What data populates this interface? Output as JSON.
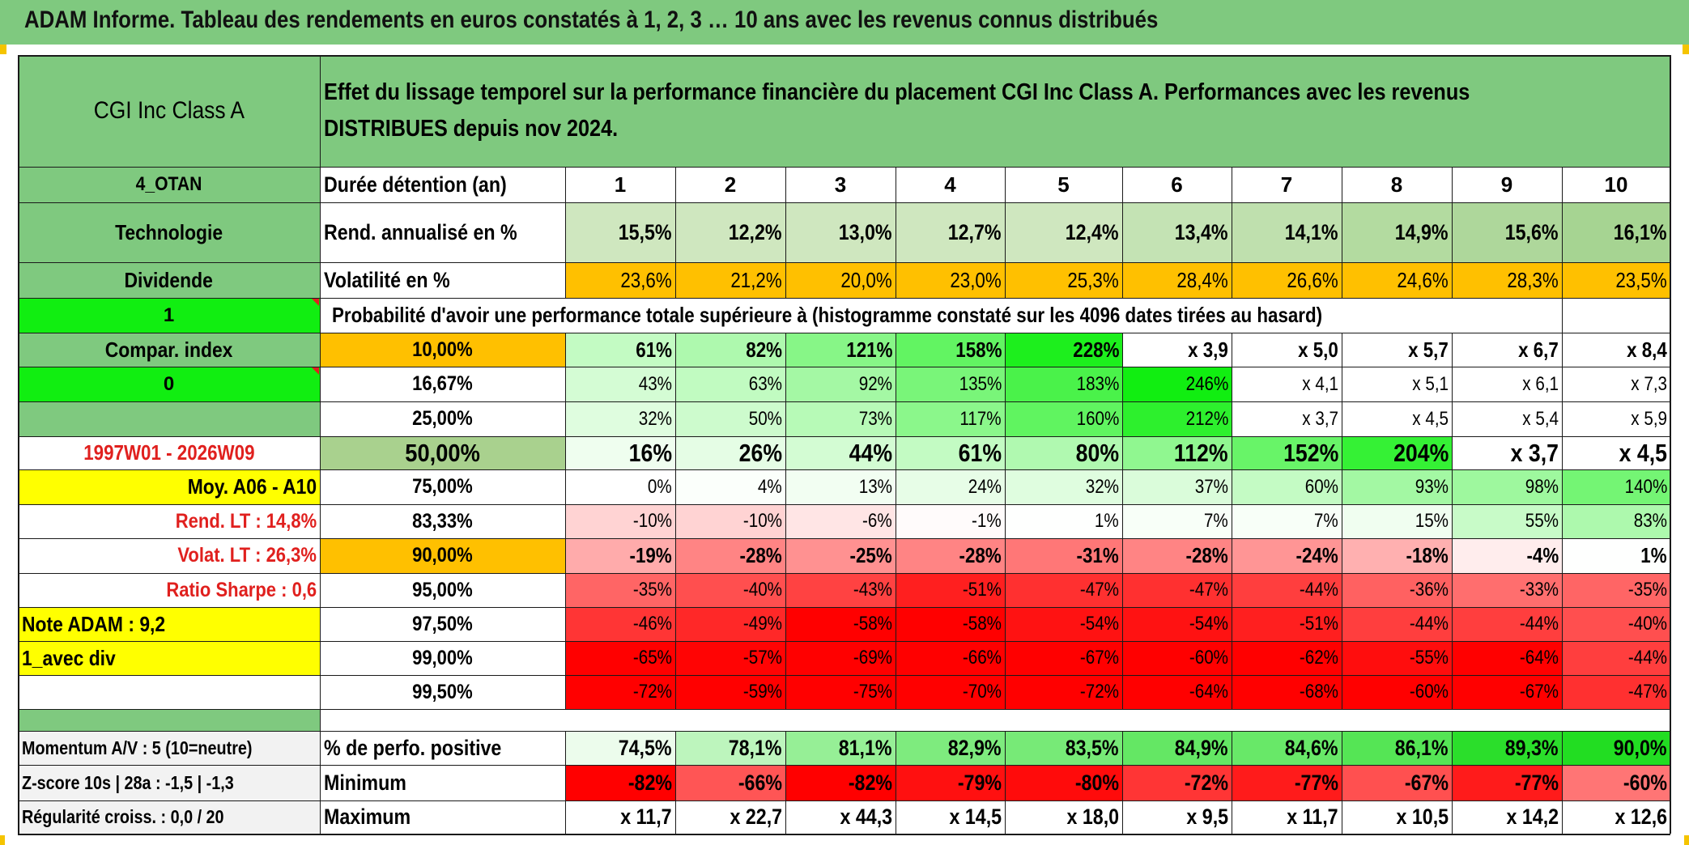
{
  "title": "ADAM Informe. Tableau des rendements en euros constatés à 1, 2, 3 … 10 ans avec les revenus connus distribués",
  "fund_name": "CGI Inc Class A",
  "header_description": "Effet du lissage temporel sur la performance financière du placement CGI Inc Class A. Performances avec les revenus DISTRIBUES depuis nov 2024.",
  "left_panel": {
    "code": "4_OTAN",
    "sector": "Technologie",
    "distribution": "Dividende",
    "flag1": "1",
    "compar_index": "Compar. index",
    "flag2": "0",
    "blank": "",
    "period": "1997W01 - 2026W09",
    "moy": "Moy. A06 - A10",
    "rend_lt": "Rend. LT :   14,8%",
    "volat_lt": "Volat. LT :   26,3%",
    "ratio_sharpe": "Ratio Sharpe :    0,6",
    "note_adam": "Note ADAM : 9,2",
    "avec_div": "1_avec div",
    "blank2": ""
  },
  "duration_label": "Durée détention (an)",
  "durations": [
    "1",
    "2",
    "3",
    "4",
    "5",
    "6",
    "7",
    "8",
    "9",
    "10"
  ],
  "rend_label": "Rend. annualisé en %",
  "rend_values": [
    "15,5%",
    "12,2%",
    "13,0%",
    "12,7%",
    "12,4%",
    "13,4%",
    "14,1%",
    "14,9%",
    "15,6%",
    "16,1%"
  ],
  "vol_label": "Volatilité en %",
  "vol_values": [
    "23,6%",
    "21,2%",
    "20,0%",
    "23,0%",
    "25,3%",
    "28,4%",
    "26,6%",
    "24,6%",
    "28,3%",
    "23,5%"
  ],
  "prob_label": "Probabilité d'avoir une performance totale supérieure à (histogramme constaté sur les 4096 dates tirées au hasard)",
  "prob_rows": [
    {
      "p": "10,00%",
      "vals": [
        "61%",
        "82%",
        "121%",
        "158%",
        "228%",
        "x 3,9",
        "x 5,0",
        "x 5,7",
        "x 6,7",
        "x 8,4"
      ]
    },
    {
      "p": "16,67%",
      "vals": [
        "43%",
        "63%",
        "92%",
        "135%",
        "183%",
        "246%",
        "x 4,1",
        "x 5,1",
        "x 6,1",
        "x 7,3"
      ]
    },
    {
      "p": "25,00%",
      "vals": [
        "32%",
        "50%",
        "73%",
        "117%",
        "160%",
        "212%",
        "x 3,7",
        "x 4,5",
        "x 5,4",
        "x 5,9"
      ]
    },
    {
      "p": "50,00%",
      "vals": [
        "16%",
        "26%",
        "44%",
        "61%",
        "80%",
        "112%",
        "152%",
        "204%",
        "x 3,7",
        "x 4,5"
      ]
    },
    {
      "p": "75,00%",
      "vals": [
        "0%",
        "4%",
        "13%",
        "24%",
        "32%",
        "37%",
        "60%",
        "93%",
        "98%",
        "140%"
      ]
    },
    {
      "p": "83,33%",
      "vals": [
        "-10%",
        "-10%",
        "-6%",
        "-1%",
        "1%",
        "7%",
        "7%",
        "15%",
        "55%",
        "83%"
      ]
    },
    {
      "p": "90,00%",
      "vals": [
        "-19%",
        "-28%",
        "-25%",
        "-28%",
        "-31%",
        "-28%",
        "-24%",
        "-18%",
        "-4%",
        "1%"
      ]
    },
    {
      "p": "95,00%",
      "vals": [
        "-35%",
        "-40%",
        "-43%",
        "-51%",
        "-47%",
        "-47%",
        "-44%",
        "-36%",
        "-33%",
        "-35%"
      ]
    },
    {
      "p": "97,50%",
      "vals": [
        "-46%",
        "-49%",
        "-58%",
        "-58%",
        "-54%",
        "-54%",
        "-51%",
        "-44%",
        "-44%",
        "-40%"
      ]
    },
    {
      "p": "99,00%",
      "vals": [
        "-65%",
        "-57%",
        "-69%",
        "-66%",
        "-67%",
        "-60%",
        "-62%",
        "-55%",
        "-64%",
        "-44%"
      ]
    },
    {
      "p": "99,50%",
      "vals": [
        "-72%",
        "-59%",
        "-75%",
        "-70%",
        "-72%",
        "-64%",
        "-68%",
        "-60%",
        "-67%",
        "-47%"
      ]
    }
  ],
  "bottom_left": {
    "momentum": "Momentum A/V : 5 (10=neutre)",
    "zscore": "Z-score 10s | 28a : -1,5 | -1,3",
    "regularite": "Régularité croiss. : 0,0 / 20"
  },
  "pos_label": "% de perfo. positive",
  "pos_values": [
    "74,5%",
    "78,1%",
    "81,1%",
    "82,9%",
    "83,5%",
    "84,9%",
    "84,6%",
    "86,1%",
    "89,3%",
    "90,0%"
  ],
  "min_label": "Minimum",
  "min_values": [
    "-82%",
    "-66%",
    "-82%",
    "-79%",
    "-80%",
    "-72%",
    "-77%",
    "-67%",
    "-77%",
    "-60%"
  ],
  "max_label": "Maximum",
  "max_values": [
    "x 11,7",
    "x 22,7",
    "x 44,3",
    "x 14,5",
    "x 18,0",
    "x 9,5",
    "x 11,7",
    "x 10,5",
    "x 14,2",
    "x 12,6"
  ],
  "colors": {
    "title_green": "#7fc97f",
    "header_green": "#7fc97f",
    "bright_green": "#11ee11",
    "orange": "#ffc000",
    "yellow": "#ffff00",
    "red_text": "#e0201e"
  }
}
